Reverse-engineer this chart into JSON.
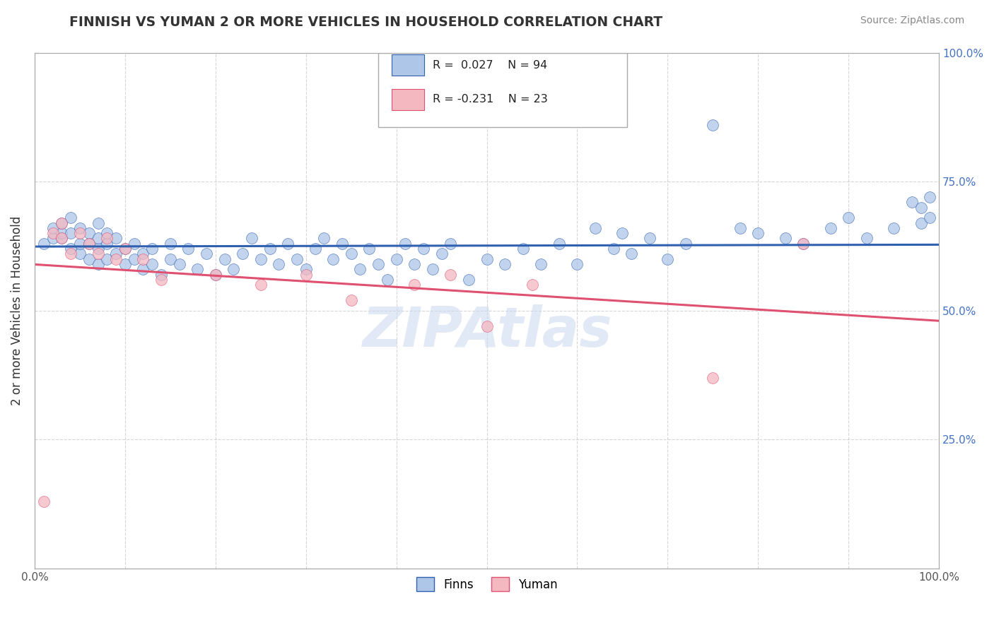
{
  "title": "FINNISH VS YUMAN 2 OR MORE VEHICLES IN HOUSEHOLD CORRELATION CHART",
  "source_text": "Source: ZipAtlas.com",
  "ylabel": "2 or more Vehicles in Household",
  "legend_label1": "Finns",
  "legend_label2": "Yuman",
  "r1": 0.027,
  "n1": 94,
  "r2": -0.231,
  "n2": 23,
  "color_finns": "#aec6e8",
  "color_yuman": "#f4b8c1",
  "line_color_finns": "#3060b0",
  "line_color_yuman": "#e05070",
  "watermark": "ZIPAtlas",
  "xmin": 0.0,
  "xmax": 1.0,
  "ymin": 0.0,
  "ymax": 1.0,
  "xticks": [
    0.0,
    0.1,
    0.2,
    0.3,
    0.4,
    0.5,
    0.6,
    0.7,
    0.8,
    0.9,
    1.0
  ],
  "yticks": [
    0.0,
    0.25,
    0.5,
    0.75,
    1.0
  ],
  "finns_x": [
    0.01,
    0.02,
    0.02,
    0.03,
    0.03,
    0.03,
    0.04,
    0.04,
    0.04,
    0.05,
    0.05,
    0.05,
    0.06,
    0.06,
    0.06,
    0.07,
    0.07,
    0.07,
    0.07,
    0.08,
    0.08,
    0.08,
    0.09,
    0.09,
    0.1,
    0.1,
    0.11,
    0.11,
    0.12,
    0.12,
    0.13,
    0.13,
    0.14,
    0.15,
    0.15,
    0.16,
    0.17,
    0.18,
    0.19,
    0.2,
    0.21,
    0.22,
    0.23,
    0.24,
    0.25,
    0.26,
    0.27,
    0.28,
    0.29,
    0.3,
    0.31,
    0.32,
    0.33,
    0.34,
    0.35,
    0.36,
    0.37,
    0.38,
    0.39,
    0.4,
    0.41,
    0.42,
    0.43,
    0.44,
    0.45,
    0.46,
    0.48,
    0.5,
    0.52,
    0.54,
    0.56,
    0.58,
    0.6,
    0.62,
    0.64,
    0.65,
    0.66,
    0.68,
    0.7,
    0.72,
    0.75,
    0.78,
    0.8,
    0.83,
    0.85,
    0.88,
    0.9,
    0.92,
    0.95,
    0.97,
    0.98,
    0.98,
    0.99,
    0.99
  ],
  "finns_y": [
    0.63,
    0.64,
    0.66,
    0.64,
    0.65,
    0.67,
    0.62,
    0.65,
    0.68,
    0.61,
    0.63,
    0.66,
    0.6,
    0.63,
    0.65,
    0.59,
    0.62,
    0.64,
    0.67,
    0.6,
    0.63,
    0.65,
    0.61,
    0.64,
    0.59,
    0.62,
    0.6,
    0.63,
    0.58,
    0.61,
    0.59,
    0.62,
    0.57,
    0.6,
    0.63,
    0.59,
    0.62,
    0.58,
    0.61,
    0.57,
    0.6,
    0.58,
    0.61,
    0.64,
    0.6,
    0.62,
    0.59,
    0.63,
    0.6,
    0.58,
    0.62,
    0.64,
    0.6,
    0.63,
    0.61,
    0.58,
    0.62,
    0.59,
    0.56,
    0.6,
    0.63,
    0.59,
    0.62,
    0.58,
    0.61,
    0.63,
    0.56,
    0.6,
    0.59,
    0.62,
    0.59,
    0.63,
    0.59,
    0.66,
    0.62,
    0.65,
    0.61,
    0.64,
    0.6,
    0.63,
    0.86,
    0.66,
    0.65,
    0.64,
    0.63,
    0.66,
    0.68,
    0.64,
    0.66,
    0.71,
    0.67,
    0.7,
    0.68,
    0.72
  ],
  "yuman_x": [
    0.01,
    0.02,
    0.03,
    0.03,
    0.04,
    0.05,
    0.06,
    0.07,
    0.08,
    0.09,
    0.1,
    0.12,
    0.14,
    0.2,
    0.25,
    0.3,
    0.35,
    0.42,
    0.46,
    0.5,
    0.55,
    0.75,
    0.85
  ],
  "yuman_y": [
    0.13,
    0.65,
    0.67,
    0.64,
    0.61,
    0.65,
    0.63,
    0.61,
    0.64,
    0.6,
    0.62,
    0.6,
    0.56,
    0.57,
    0.55,
    0.57,
    0.52,
    0.55,
    0.57,
    0.47,
    0.55,
    0.37,
    0.63
  ]
}
